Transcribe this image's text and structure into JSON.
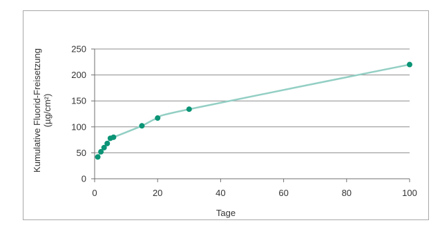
{
  "chart_data": {
    "type": "line",
    "title": "",
    "xlabel": "Tage",
    "ylabel_line1": "Kumulative Fluorid-Freisetzung",
    "ylabel_line2": "(µg/cm²)",
    "xlim": [
      0,
      100
    ],
    "ylim": [
      0,
      250
    ],
    "x_ticks": [
      0,
      20,
      40,
      60,
      80,
      100
    ],
    "y_ticks": [
      0,
      50,
      100,
      150,
      200,
      250
    ],
    "grid": "horizontal",
    "legend": "none",
    "series": [
      {
        "x": [
          1,
          2,
          3,
          4,
          5,
          6,
          15,
          20,
          30,
          100
        ],
        "y": [
          42,
          52,
          60,
          68,
          78,
          80,
          102,
          117,
          134,
          220
        ]
      }
    ],
    "colors": {
      "line": "#93cfc4",
      "marker": "#0b9476",
      "grid": "#8c8c8c",
      "axis": "#6f6f6f"
    }
  }
}
